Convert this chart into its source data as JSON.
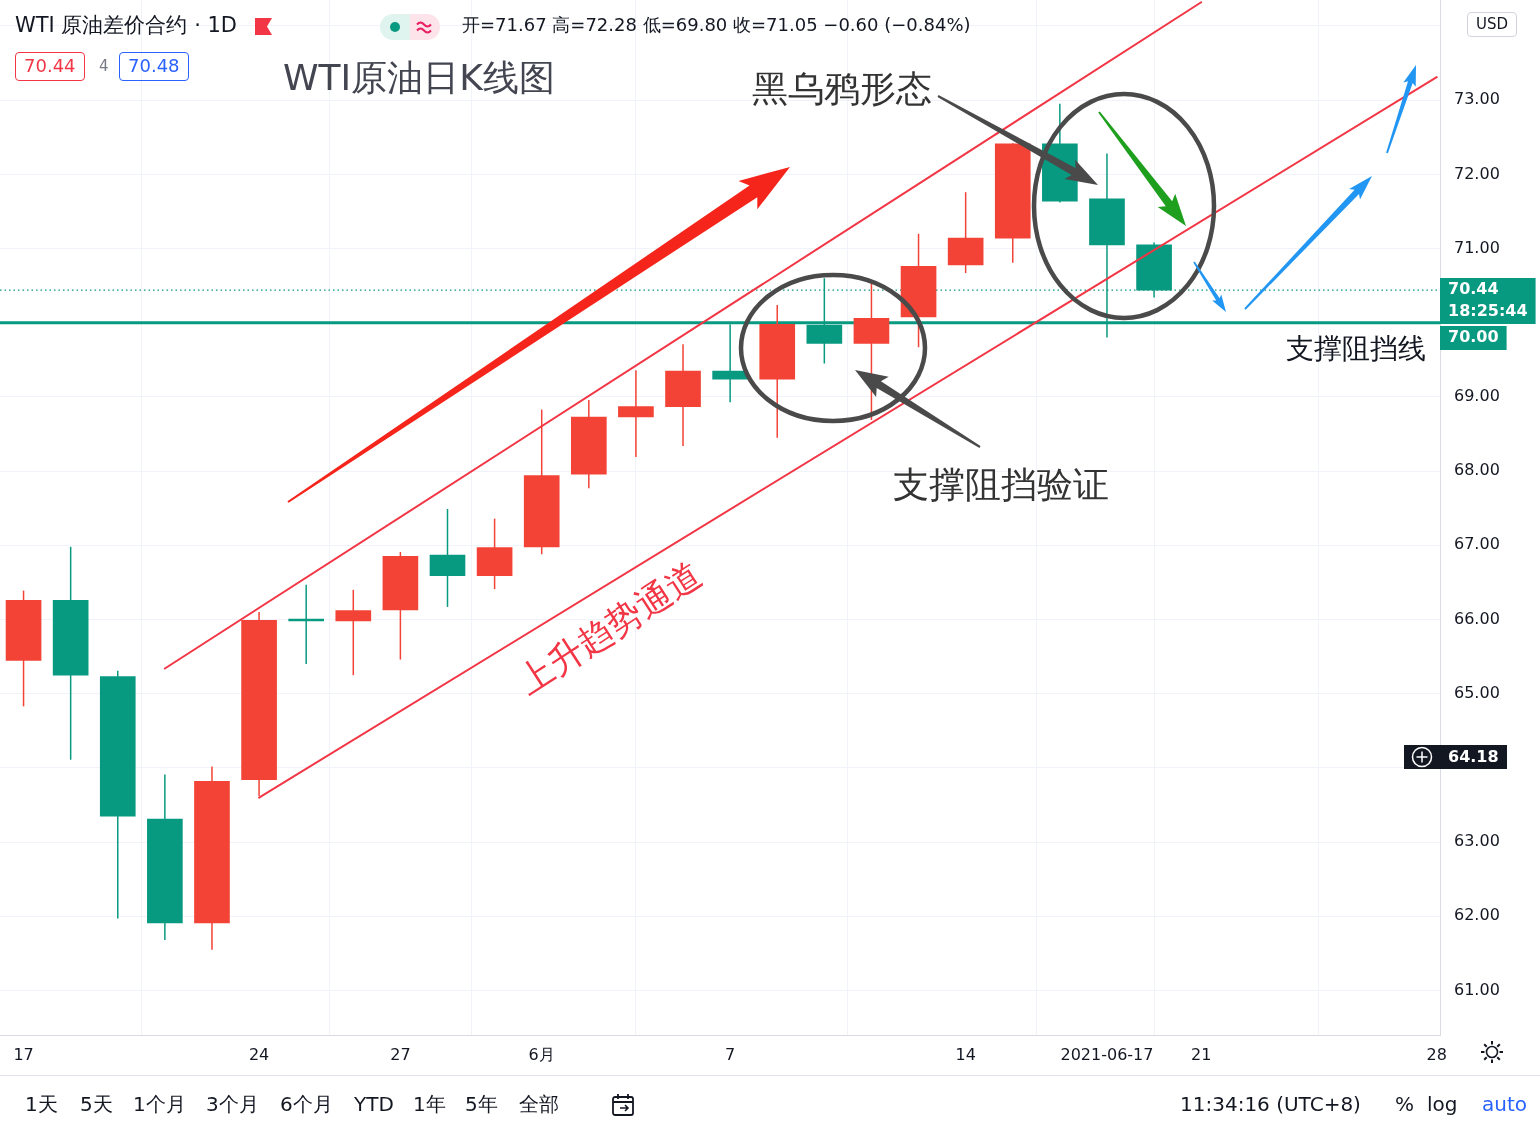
{
  "chart_data": {
    "type": "candlestick",
    "title": "WTI原油日K线图",
    "subtitle": "WTI 原油差价合约 · 1D",
    "categories": [
      "17",
      null,
      null,
      null,
      null,
      "24",
      null,
      null,
      "27",
      null,
      null,
      "6月",
      null,
      null,
      null,
      "7",
      null,
      null,
      null,
      null,
      "14",
      null,
      null,
      "2021-06-17",
      null,
      "21",
      null,
      null,
      null,
      null,
      "28"
    ],
    "ohlc": [
      [
        65.45,
        66.39,
        64.83,
        66.26
      ],
      [
        66.26,
        66.98,
        64.11,
        65.25
      ],
      [
        65.23,
        65.31,
        61.97,
        63.35
      ],
      [
        63.31,
        63.91,
        61.68,
        61.91
      ],
      [
        61.91,
        64.02,
        61.55,
        63.82
      ],
      [
        63.84,
        66.1,
        63.62,
        65.99
      ],
      [
        66.0,
        66.47,
        65.4,
        65.98
      ],
      [
        65.98,
        66.4,
        65.25,
        66.12
      ],
      [
        66.13,
        66.91,
        65.46,
        66.85
      ],
      [
        66.87,
        67.49,
        66.17,
        66.59
      ],
      [
        66.59,
        67.36,
        66.41,
        66.97
      ],
      [
        66.98,
        68.83,
        66.88,
        67.94
      ],
      [
        67.96,
        68.96,
        67.77,
        68.73
      ],
      [
        68.73,
        69.36,
        68.19,
        68.87
      ],
      [
        68.87,
        69.71,
        68.34,
        69.35
      ],
      [
        69.35,
        69.98,
        68.93,
        69.24
      ],
      [
        69.24,
        70.24,
        68.45,
        69.98
      ],
      [
        69.97,
        70.6,
        69.45,
        69.72
      ],
      [
        69.72,
        70.55,
        68.69,
        70.06
      ],
      [
        70.08,
        71.2,
        69.67,
        70.76
      ],
      [
        70.78,
        71.76,
        70.67,
        71.14
      ],
      [
        71.14,
        72.42,
        70.81,
        72.41
      ],
      [
        72.41,
        72.95,
        71.62,
        71.64
      ],
      [
        71.67,
        72.28,
        69.8,
        71.05
      ],
      [
        71.05,
        71.08,
        70.34,
        70.44
      ],
      null,
      null,
      null,
      null,
      null,
      null
    ],
    "colors": [
      "#f24336",
      "#089981",
      "#089981",
      "#089981",
      "#f24336",
      "#f24336",
      "#089981",
      "#f24336",
      "#f24336",
      "#089981",
      "#f24336",
      "#f24336",
      "#f24336",
      "#f24336",
      "#f24336",
      "#089981",
      "#f24336",
      "#089981",
      "#f24336",
      "#f24336",
      "#f24336",
      "#f24336",
      "#089981",
      "#089981",
      "#089981",
      null,
      null,
      null,
      null,
      null,
      null
    ],
    "series": [
      {
        "type": "line",
        "color": "#f23645",
        "values": [
          null,
          null,
          null,
          65.34,
          null,
          null,
          null,
          null,
          null,
          null,
          null,
          null,
          null,
          null,
          null,
          null,
          null,
          null,
          null,
          null,
          null,
          null,
          null,
          null,
          null,
          74.32,
          null,
          null,
          null,
          null,
          null
        ]
      },
      {
        "type": "line",
        "color": "#f23645",
        "values": [
          null,
          null,
          null,
          null,
          null,
          63.6,
          null,
          null,
          null,
          null,
          null,
          null,
          null,
          null,
          null,
          null,
          null,
          null,
          null,
          null,
          null,
          null,
          null,
          null,
          null,
          null,
          null,
          null,
          null,
          null,
          73.31
        ]
      }
    ],
    "ylim": [
      60.4,
      74.35
    ],
    "yticks": [
      {
        "value": 61,
        "label": "61.00"
      },
      {
        "value": 62,
        "label": "62.00"
      },
      {
        "value": 63,
        "label": "63.00"
      },
      {
        "value": 64,
        "label": null
      },
      {
        "value": 65,
        "label": "65.00"
      },
      {
        "value": 66,
        "label": "66.00"
      },
      {
        "value": 67,
        "label": "67.00"
      },
      {
        "value": 68,
        "label": "68.00"
      },
      {
        "value": 69,
        "label": "69.00"
      },
      {
        "value": 70,
        "label": null
      },
      {
        "value": 71,
        "label": "71.00"
      },
      {
        "value": 72,
        "label": "72.00"
      },
      {
        "value": 73,
        "label": "73.00"
      },
      {
        "value": 74,
        "label": null
      }
    ],
    "grid": true,
    "ref_lines": [
      {
        "axis": "y",
        "value": 70.0,
        "label": "支撑阻挡线",
        "color": "#089981",
        "line_style": "solid"
      },
      {
        "axis": "y",
        "value": 70.44,
        "color": "#089981",
        "line_style": "dotted"
      }
    ],
    "annotations": [
      "开=71.67 高=72.28 低=69.80 收=71.05 −0.60 (−0.84%)",
      "70.44",
      "4",
      "70.48",
      "USD",
      "黑乌鸦形态",
      "支撑阻挡验证",
      "上升趋势通道",
      "1天",
      "5天",
      "1个月",
      "3个月",
      "6个月",
      "YTD",
      "1年",
      "5年",
      "全部",
      "11:34:16 (UTC+8)",
      "%",
      "log",
      "auto",
      "70.44",
      "18:25:44",
      "70.00",
      "64.18"
    ]
  }
}
